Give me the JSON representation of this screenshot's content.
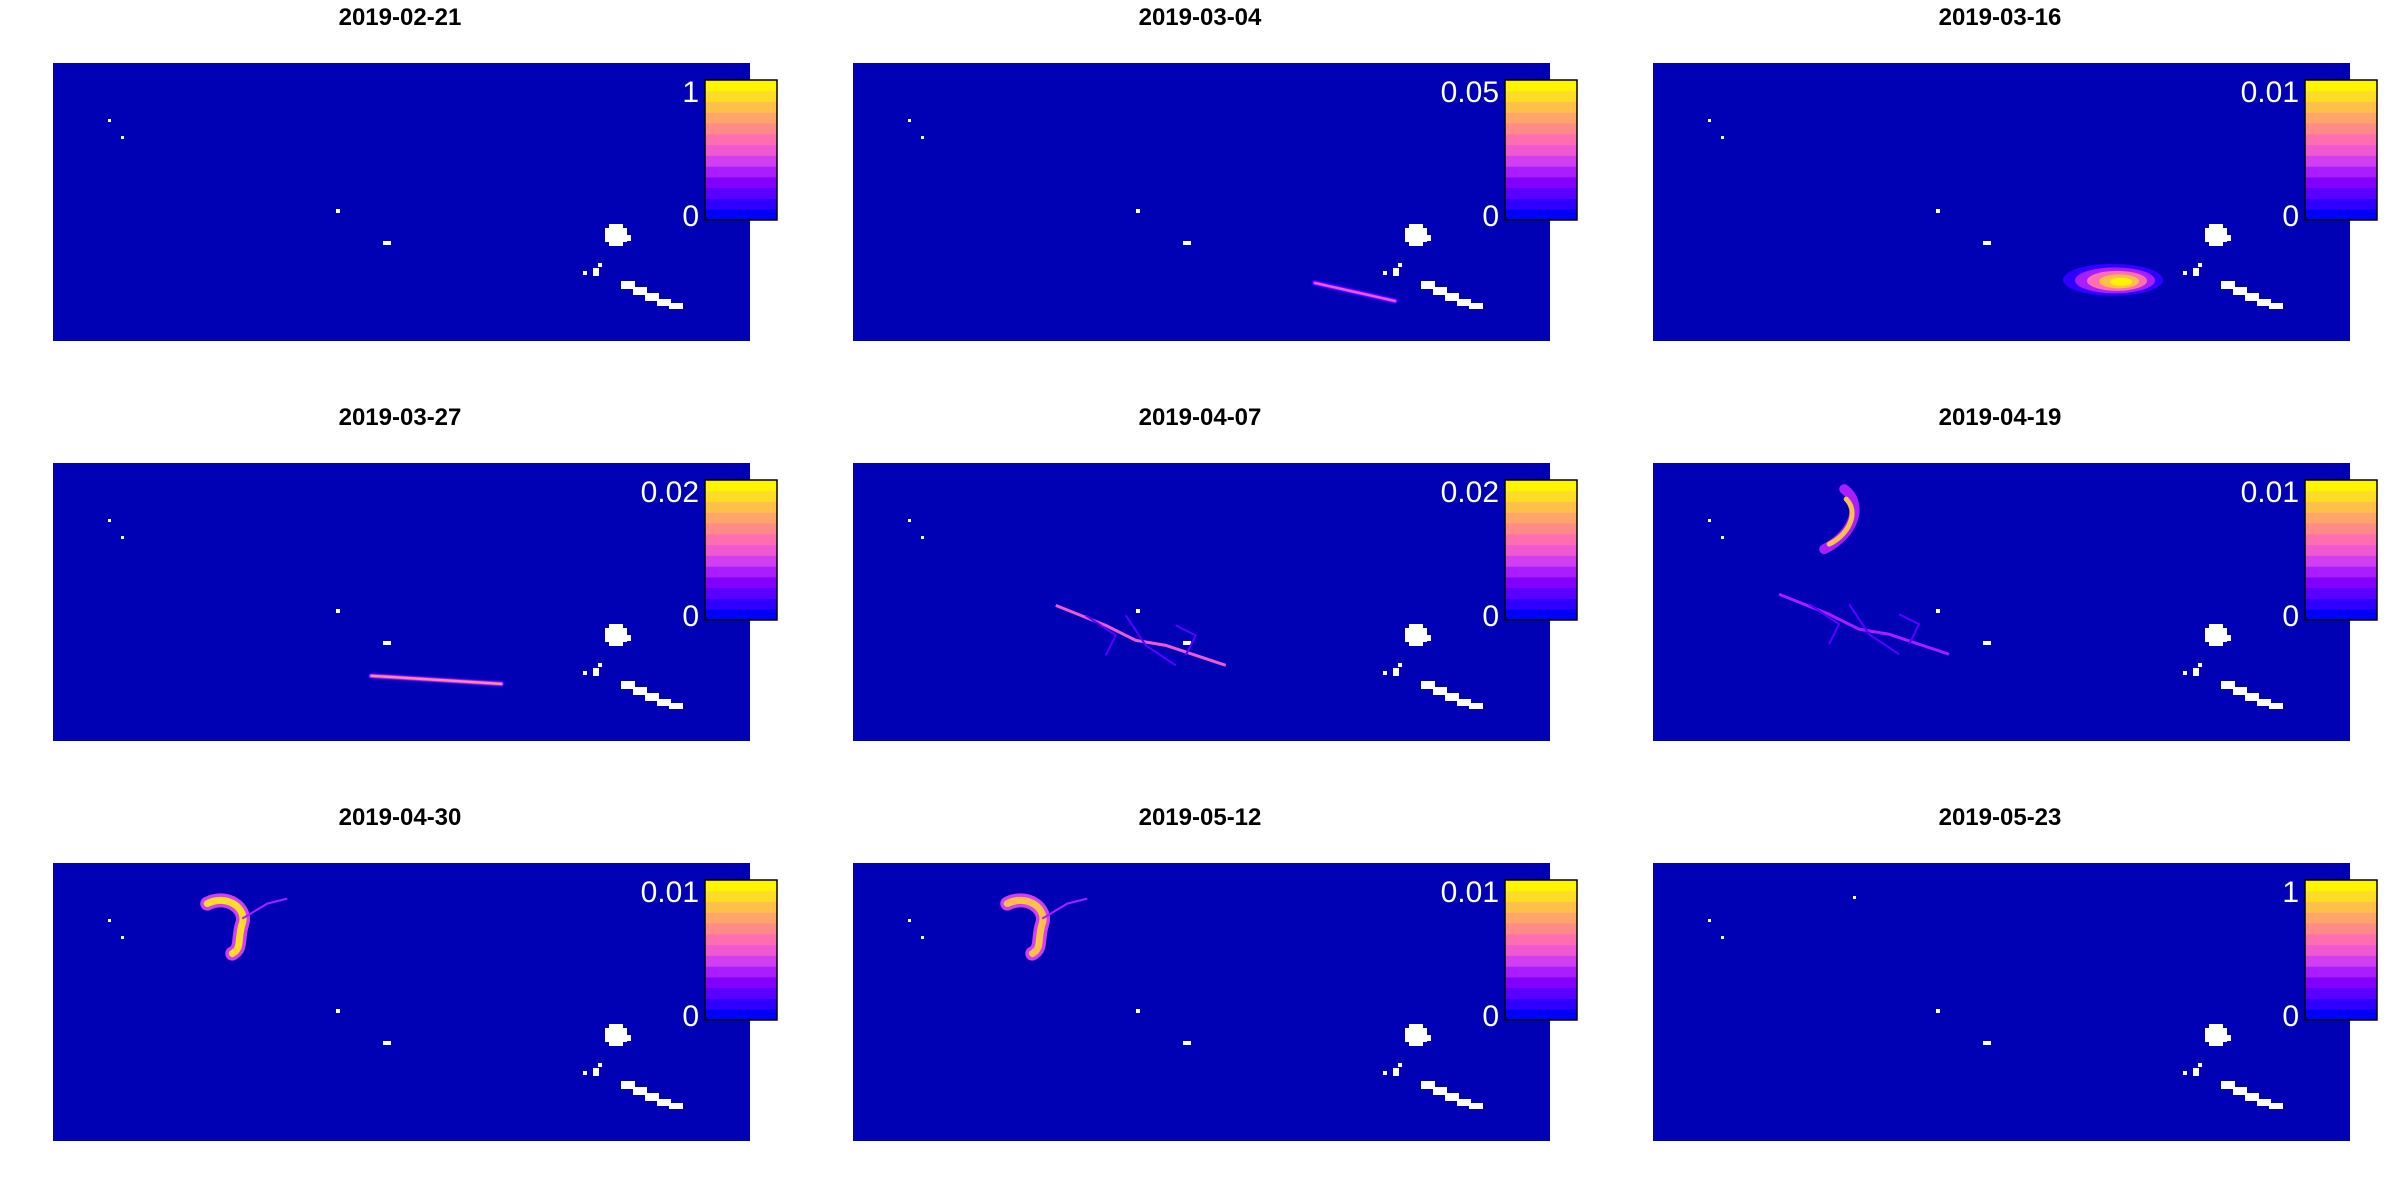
{
  "figure": {
    "background_color": "#0000B4",
    "land_color": "#FFFFFF"
  },
  "chart_data": [
    {
      "type": "heatmap",
      "title": "2019-02-21",
      "legend_min": "0",
      "legend_max": "1",
      "legend_placement": "top-right",
      "grid": false,
      "hotspots": []
    },
    {
      "type": "heatmap",
      "title": "2019-03-04",
      "legend_min": "0",
      "legend_max": "0.05",
      "legend_placement": "top-right",
      "grid": false,
      "hotspots": [
        {
          "shape": "streak",
          "lon": 0.72,
          "lat": 0.82,
          "intensity": 0.6
        }
      ]
    },
    {
      "type": "heatmap",
      "title": "2019-03-16",
      "legend_min": "0",
      "legend_max": "0.01",
      "legend_placement": "top-right",
      "grid": false,
      "hotspots": [
        {
          "shape": "blob",
          "lon": 0.66,
          "lat": 0.78,
          "intensity": 1.0
        }
      ]
    },
    {
      "type": "heatmap",
      "title": "2019-03-27",
      "legend_min": "0",
      "legend_max": "0.02",
      "legend_placement": "top-right",
      "grid": false,
      "hotspots": [
        {
          "shape": "streak",
          "lon": 0.55,
          "lat": 0.78,
          "intensity": 0.8
        }
      ]
    },
    {
      "type": "heatmap",
      "title": "2019-04-07",
      "legend_min": "0",
      "legend_max": "0.02",
      "legend_placement": "top-right",
      "grid": false,
      "hotspots": [
        {
          "shape": "filaments",
          "lon": 0.42,
          "lat": 0.62,
          "intensity": 0.5
        }
      ]
    },
    {
      "type": "heatmap",
      "title": "2019-04-19",
      "legend_min": "0",
      "legend_max": "0.01",
      "legend_placement": "top-right",
      "grid": false,
      "hotspots": [
        {
          "shape": "crescent",
          "lon": 0.26,
          "lat": 0.22,
          "intensity": 0.9
        },
        {
          "shape": "filaments",
          "lon": 0.31,
          "lat": 0.58,
          "intensity": 0.2
        }
      ]
    },
    {
      "type": "heatmap",
      "title": "2019-04-30",
      "legend_min": "0",
      "legend_max": "0.01",
      "legend_placement": "top-right",
      "grid": false,
      "hotspots": [
        {
          "shape": "hook",
          "lon": 0.25,
          "lat": 0.2,
          "intensity": 1.0
        }
      ]
    },
    {
      "type": "heatmap",
      "title": "2019-05-12",
      "legend_min": "0",
      "legend_max": "0.01",
      "legend_placement": "top-right",
      "grid": false,
      "hotspots": [
        {
          "shape": "hook",
          "lon": 0.25,
          "lat": 0.2,
          "intensity": 0.9
        }
      ]
    },
    {
      "type": "heatmap",
      "title": "2019-05-23",
      "legend_min": "0",
      "legend_max": "1",
      "legend_placement": "top-right",
      "grid": false,
      "hotspots": []
    }
  ]
}
